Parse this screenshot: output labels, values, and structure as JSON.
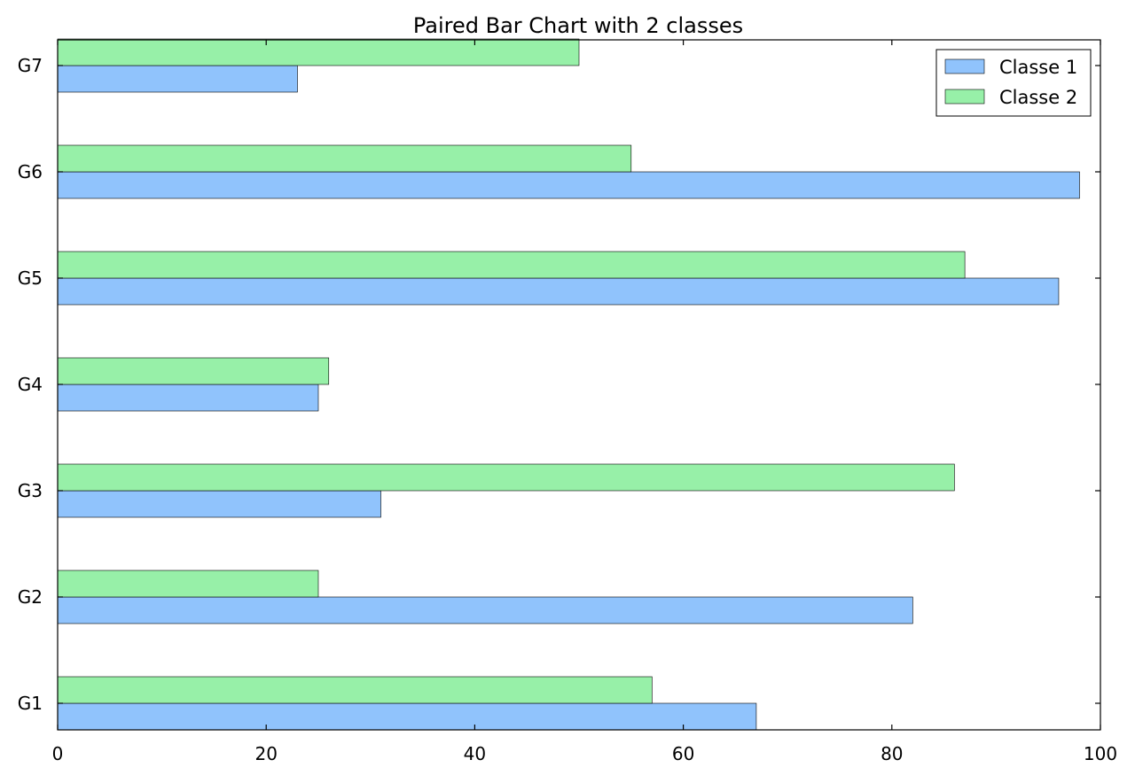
{
  "chart_data": {
    "type": "bar",
    "orientation": "horizontal",
    "title": "Paired Bar Chart with 2 classes",
    "xlabel": "",
    "ylabel": "",
    "categories": [
      "G1",
      "G2",
      "G3",
      "G4",
      "G5",
      "G6",
      "G7"
    ],
    "series": [
      {
        "name": "Classe 1",
        "values": [
          67,
          82,
          31,
          25,
          96,
          98,
          23
        ],
        "color": "#90c3fc"
      },
      {
        "name": "Classe 2",
        "values": [
          57,
          25,
          86,
          26,
          87,
          55,
          50
        ],
        "color": "#97f0a8"
      }
    ],
    "xlim": [
      0,
      100
    ],
    "x_ticks": [
      0,
      20,
      40,
      60,
      80,
      100
    ],
    "grid": false,
    "legend": {
      "position": "top-right"
    }
  }
}
